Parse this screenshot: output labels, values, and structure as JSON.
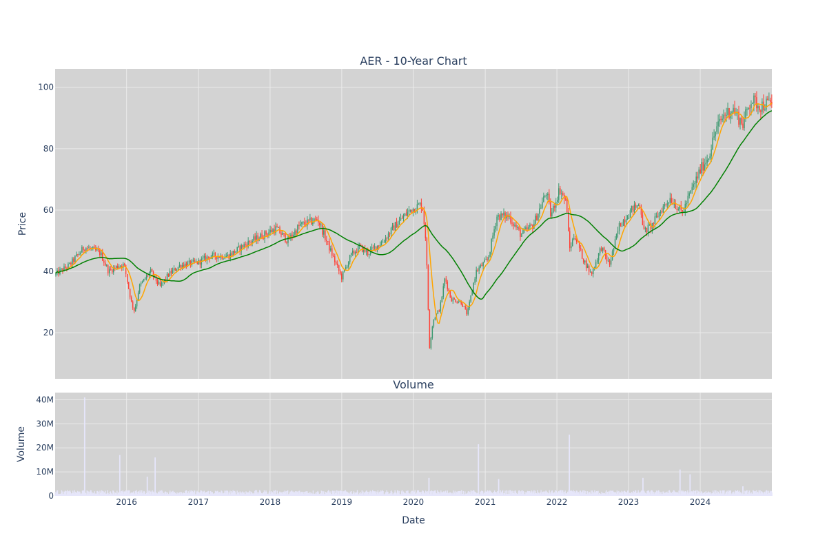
{
  "chart_data": [
    {
      "type": "candlestick",
      "title": "AER - 10-Year Chart",
      "ylabel": "Price",
      "xlabel": "",
      "ylim": [
        5,
        106
      ],
      "yticks": [
        20,
        40,
        60,
        80,
        100
      ],
      "xlim": [
        "2015-01-02",
        "2024-12-31"
      ],
      "grid": true,
      "colors": {
        "increasing": "#3d9970",
        "decreasing": "#ff4136",
        "plot_bg": "#d3d3d3",
        "grid": "#ebebeb",
        "ma_short": "#ffa500",
        "ma_long": "#008000"
      },
      "price_anchors": [
        [
          "2015-01-02",
          39
        ],
        [
          "2015-03-15",
          42
        ],
        [
          "2015-06-01",
          48
        ],
        [
          "2015-08-20",
          46
        ],
        [
          "2015-10-01",
          40
        ],
        [
          "2015-11-25",
          42
        ],
        [
          "2015-12-20",
          42
        ],
        [
          "2016-01-25",
          30
        ],
        [
          "2016-02-10",
          27
        ],
        [
          "2016-03-05",
          35
        ],
        [
          "2016-05-01",
          40
        ],
        [
          "2016-06-20",
          35
        ],
        [
          "2016-08-01",
          39
        ],
        [
          "2016-10-01",
          42
        ],
        [
          "2017-01-01",
          43
        ],
        [
          "2017-03-01",
          45
        ],
        [
          "2017-06-01",
          45
        ],
        [
          "2017-09-01",
          49
        ],
        [
          "2017-12-01",
          52
        ],
        [
          "2018-02-01",
          54
        ],
        [
          "2018-04-01",
          50
        ],
        [
          "2018-06-01",
          55
        ],
        [
          "2018-09-01",
          57
        ],
        [
          "2018-10-15",
          50
        ],
        [
          "2018-12-31",
          38
        ],
        [
          "2019-02-15",
          45
        ],
        [
          "2019-04-01",
          48
        ],
        [
          "2019-05-15",
          46
        ],
        [
          "2019-08-01",
          50
        ],
        [
          "2019-10-01",
          55
        ],
        [
          "2019-12-15",
          60
        ],
        [
          "2020-02-15",
          62
        ],
        [
          "2020-03-05",
          50
        ],
        [
          "2020-03-23",
          15
        ],
        [
          "2020-04-10",
          24
        ],
        [
          "2020-05-15",
          28
        ],
        [
          "2020-06-10",
          38
        ],
        [
          "2020-07-10",
          31
        ],
        [
          "2020-09-01",
          30
        ],
        [
          "2020-10-01",
          26
        ],
        [
          "2020-11-15",
          40
        ],
        [
          "2021-01-15",
          44
        ],
        [
          "2021-03-01",
          58
        ],
        [
          "2021-05-01",
          58
        ],
        [
          "2021-07-01",
          52
        ],
        [
          "2021-09-01",
          55
        ],
        [
          "2021-11-10",
          66
        ],
        [
          "2021-12-01",
          58
        ],
        [
          "2022-01-15",
          67
        ],
        [
          "2022-02-20",
          62
        ],
        [
          "2022-03-05",
          47
        ],
        [
          "2022-04-01",
          52
        ],
        [
          "2022-05-15",
          44
        ],
        [
          "2022-06-25",
          39
        ],
        [
          "2022-08-15",
          48
        ],
        [
          "2022-09-25",
          42
        ],
        [
          "2022-11-15",
          55
        ],
        [
          "2023-01-15",
          60
        ],
        [
          "2023-03-01",
          62
        ],
        [
          "2023-03-20",
          53
        ],
        [
          "2023-05-01",
          55
        ],
        [
          "2023-06-15",
          60
        ],
        [
          "2023-08-01",
          64
        ],
        [
          "2023-10-01",
          59
        ],
        [
          "2023-11-15",
          66
        ],
        [
          "2024-01-01",
          73
        ],
        [
          "2024-02-15",
          78
        ],
        [
          "2024-03-20",
          86
        ],
        [
          "2024-05-01",
          91
        ],
        [
          "2024-06-15",
          93
        ],
        [
          "2024-08-05",
          88
        ],
        [
          "2024-09-15",
          96
        ],
        [
          "2024-11-01",
          94
        ],
        [
          "2024-12-31",
          95
        ]
      ]
    },
    {
      "type": "bar",
      "title": "Volume",
      "ylabel": "Volume",
      "xlabel": "Date",
      "ylim": [
        0,
        43000000
      ],
      "yticks": [
        [
          0,
          "0"
        ],
        [
          10000000,
          "10M"
        ],
        [
          20000000,
          "20M"
        ],
        [
          30000000,
          "30M"
        ],
        [
          40000000,
          "40M"
        ]
      ],
      "xticks": [
        [
          "2016-01-01",
          "2016"
        ],
        [
          "2017-01-01",
          "2017"
        ],
        [
          "2018-01-01",
          "2018"
        ],
        [
          "2019-01-01",
          "2019"
        ],
        [
          "2020-01-01",
          "2020"
        ],
        [
          "2021-01-01",
          "2021"
        ],
        [
          "2022-01-01",
          "2022"
        ],
        [
          "2023-01-01",
          "2023"
        ],
        [
          "2024-01-01",
          "2024"
        ]
      ],
      "bar_color": "#e6e6fa",
      "spikes": [
        [
          "2015-06-01",
          41000000
        ],
        [
          "2015-11-27",
          17000000
        ],
        [
          "2016-05-25",
          16000000
        ],
        [
          "2016-04-15",
          8000000
        ],
        [
          "2020-03-20",
          7500000
        ],
        [
          "2020-11-27",
          21500000
        ],
        [
          "2021-03-10",
          7000000
        ],
        [
          "2022-03-05",
          25500000
        ],
        [
          "2023-03-15",
          7500000
        ],
        [
          "2023-09-20",
          11000000
        ],
        [
          "2023-11-10",
          9000000
        ],
        [
          "2024-08-05",
          4000000
        ]
      ]
    }
  ]
}
